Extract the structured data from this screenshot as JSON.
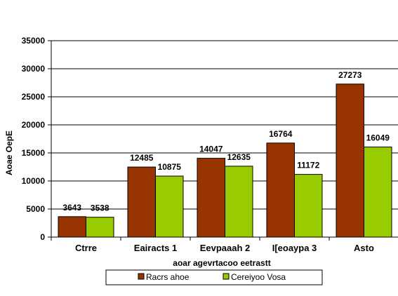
{
  "chart_data": {
    "type": "bar",
    "categories": [
      "Ctrre",
      "Eairacts 1",
      "Eevpaaah 2",
      "I[eoaypa 3",
      "Asto"
    ],
    "series": [
      {
        "name": "Racrs ahoe",
        "color": "#993300",
        "values": [
          3643,
          12485,
          14047,
          16764,
          27273
        ]
      },
      {
        "name": "Cereiyoo Vosa",
        "color": "#99cc00",
        "values": [
          3538,
          10875,
          12635,
          11172,
          16049
        ]
      }
    ],
    "xlabel": "aoar agevrtacoo eetrastt",
    "ylabel": "Aoae OepE",
    "ylim": [
      0,
      35000
    ],
    "yticks": [
      0,
      5000,
      10000,
      15000,
      20000,
      25000,
      30000,
      35000
    ],
    "grid": true,
    "legend": "bottom"
  }
}
